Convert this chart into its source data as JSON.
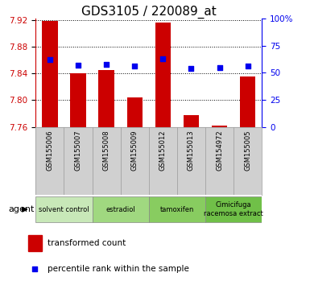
{
  "title": "GDS3105 / 220089_at",
  "samples": [
    "GSM155006",
    "GSM155007",
    "GSM155008",
    "GSM155009",
    "GSM155012",
    "GSM155013",
    "GSM154972",
    "GSM155005"
  ],
  "red_values": [
    7.919,
    7.84,
    7.845,
    7.804,
    7.916,
    7.778,
    7.762,
    7.835
  ],
  "blue_values": [
    62,
    57,
    58,
    56,
    63,
    54,
    55,
    56
  ],
  "ymin": 7.76,
  "ymax": 7.9225,
  "yticks": [
    7.76,
    7.8,
    7.84,
    7.88,
    7.92
  ],
  "y2min": 0,
  "y2max": 100,
  "y2ticks": [
    0,
    25,
    50,
    75,
    100
  ],
  "groups": [
    {
      "label": "solvent control",
      "start": 0,
      "end": 1,
      "color": "#c8e8b8"
    },
    {
      "label": "estradiol",
      "start": 2,
      "end": 3,
      "color": "#a0d880"
    },
    {
      "label": "tamoxifen",
      "start": 4,
      "end": 5,
      "color": "#88cc60"
    },
    {
      "label": "Cimicifuga\nracemosa extract",
      "start": 6,
      "end": 7,
      "color": "#70c048"
    }
  ],
  "bar_color": "#cc0000",
  "dot_color": "#0000ee",
  "bar_width": 0.55,
  "bar_bottom": 7.76,
  "background_color": "#ffffff",
  "grid_color": "#000000",
  "left_axis_color": "#cc0000",
  "right_axis_color": "#0000ee",
  "title_fontsize": 11,
  "tick_fontsize": 7.5,
  "legend_fontsize": 7.5,
  "sample_box_color": "#d0d0d0",
  "sample_box_edge": "#999999"
}
